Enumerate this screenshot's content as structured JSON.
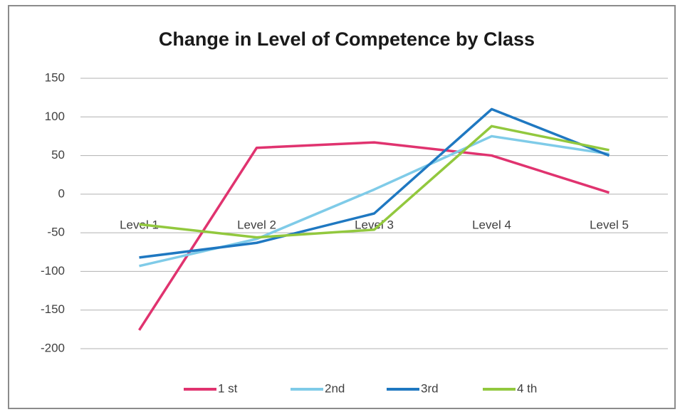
{
  "chart_data": {
    "type": "line",
    "title": "Change in Level of Competence by Class",
    "categories": [
      "Level 1",
      "Level 2",
      "Level 3",
      "Level 4",
      "Level 5"
    ],
    "series": [
      {
        "name": "1 st",
        "color": "#e0336f",
        "values": [
          -176,
          60,
          67,
          50,
          2
        ]
      },
      {
        "name": "2nd",
        "color": "#7fcbe8",
        "values": [
          -93,
          -58,
          6,
          75,
          52
        ]
      },
      {
        "name": "3rd",
        "color": "#1f78c1",
        "values": [
          -82,
          -63,
          -25,
          110,
          50
        ]
      },
      {
        "name": "4 th",
        "color": "#92c83e",
        "values": [
          -39,
          -56,
          -46,
          88,
          57
        ]
      }
    ],
    "ylim": [
      -200,
      150
    ],
    "yticks": [
      -200,
      -150,
      -100,
      -50,
      0,
      50,
      100,
      150
    ],
    "grid": true,
    "legend": "bottom"
  }
}
